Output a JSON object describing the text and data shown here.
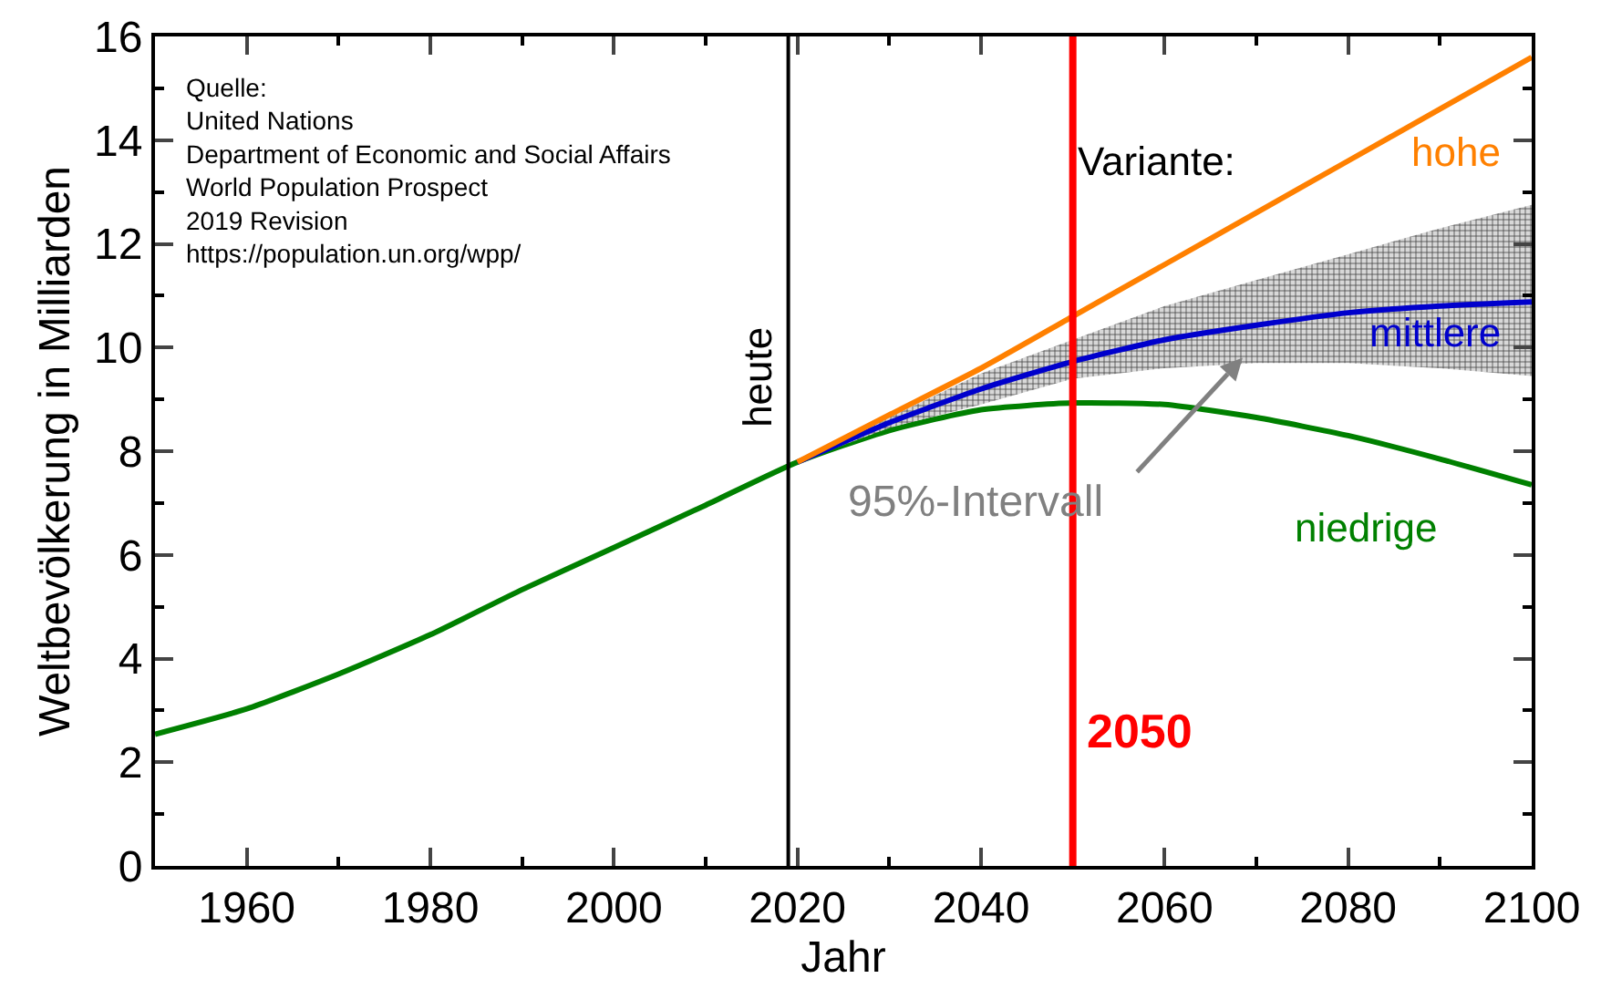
{
  "chart_data": {
    "type": "line",
    "xlabel": "Jahr",
    "ylabel": "Weltbevölkerung in Milliarden",
    "xlim": [
      1950,
      2100
    ],
    "xticks": [
      1960,
      1980,
      2000,
      2020,
      2040,
      2060,
      2080,
      2100
    ],
    "ylim": [
      0,
      16
    ],
    "yticks": [
      0,
      2,
      4,
      6,
      8,
      10,
      12,
      14,
      16
    ],
    "grid": false,
    "legend": false,
    "marker": "none",
    "line_style": "solid",
    "series": [
      {
        "name": "niedrige",
        "color": "#008000",
        "x": [
          1950,
          1960,
          1970,
          1980,
          1990,
          2000,
          2010,
          2020,
          2030,
          2040,
          2050,
          2060,
          2070,
          2080,
          2090,
          2100
        ],
        "values": [
          2.54,
          3.03,
          3.7,
          4.46,
          5.33,
          6.14,
          6.96,
          7.79,
          8.4,
          8.8,
          8.93,
          8.9,
          8.65,
          8.3,
          7.85,
          7.35
        ]
      },
      {
        "name": "mittlere",
        "color": "#0000cc",
        "x": [
          2020,
          2030,
          2040,
          2050,
          2060,
          2070,
          2080,
          2090,
          2100
        ],
        "values": [
          7.79,
          8.55,
          9.2,
          9.73,
          10.15,
          10.43,
          10.67,
          10.8,
          10.88
        ],
        "lower": [
          7.79,
          8.45,
          8.9,
          9.4,
          9.6,
          9.7,
          9.7,
          9.6,
          9.45
        ],
        "upper": [
          7.79,
          8.65,
          9.5,
          10.15,
          10.8,
          11.3,
          11.8,
          12.3,
          12.75
        ]
      },
      {
        "name": "hohe",
        "color": "#ff8000",
        "x": [
          2020,
          2030,
          2040,
          2050,
          2060,
          2070,
          2080,
          2090,
          2100
        ],
        "values": [
          7.79,
          8.7,
          9.6,
          10.6,
          11.6,
          12.6,
          13.6,
          14.6,
          15.6
        ]
      }
    ],
    "ref_lines": [
      {
        "axis": "x",
        "value": 2019,
        "label": "heute",
        "color": "#000000"
      },
      {
        "axis": "x",
        "value": 2050,
        "label": "2050",
        "color": "#ff0000"
      }
    ],
    "annotations": [
      "Quelle:\nUnited Nations\nDepartment of Economic and Social Affairs\nWorld Population Prospect\n2019 Revision\nhttps://population.un.org/wpp/",
      "Variante:",
      "95%-Intervall"
    ]
  }
}
